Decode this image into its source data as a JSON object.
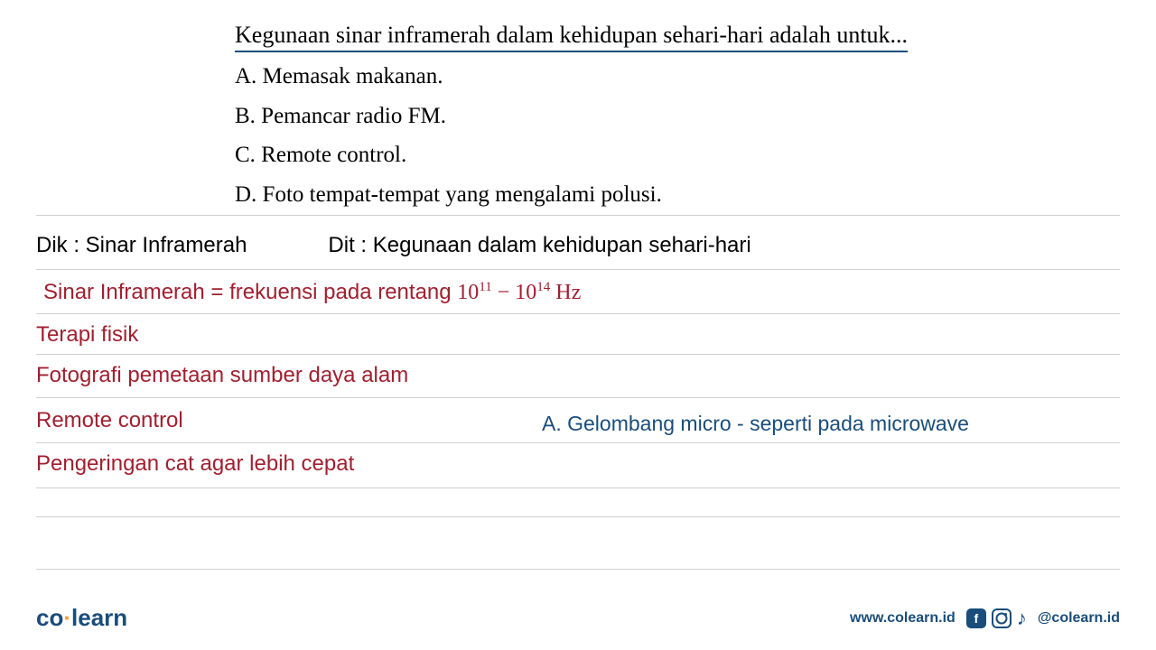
{
  "question": {
    "text": "Kegunaan sinar inframerah dalam kehidupan sehari-hari adalah untuk...",
    "options": {
      "a": "A. Memasak makanan.",
      "b": "B. Pemancar radio FM.",
      "c": "C. Remote control.",
      "d": "D. Foto tempat-tempat yang mengalami polusi."
    }
  },
  "work": {
    "dik": "Dik : Sinar Inframerah",
    "dit": "Dit : Kegunaan dalam kehidupan sehari-hari",
    "definition_pre": "Sinar Inframerah = frekuensi pada rentang ",
    "definition_range_base1": "10",
    "definition_range_exp1": "11",
    "definition_range_sep": " − ",
    "definition_range_base2": "10",
    "definition_range_exp2": "14",
    "definition_unit": " Hz",
    "uses": {
      "u1": "Terapi fisik",
      "u2": "Fotografi pemetaan sumber daya alam",
      "u3": "Remote control",
      "u4": "Pengeringan cat agar lebih cepat"
    },
    "note_a": "A. Gelombang micro - seperti pada microwave"
  },
  "footer": {
    "logo_co": "co",
    "logo_dot": "·",
    "logo_learn": "learn",
    "url": "www.colearn.id",
    "handle": "@colearn.id",
    "fb_letter": "f",
    "tiktok_glyph": "♪"
  },
  "colors": {
    "text_black": "#000000",
    "text_red": "#a02030",
    "text_blue": "#1a4d7a",
    "divider": "#d0d0d0",
    "logo_orange": "#f0a030",
    "background": "#ffffff"
  },
  "typography": {
    "question_fontsize": 26,
    "option_fontsize": 25,
    "handwritten_fontsize": 24,
    "footer_fontsize": 16,
    "logo_fontsize": 26
  }
}
